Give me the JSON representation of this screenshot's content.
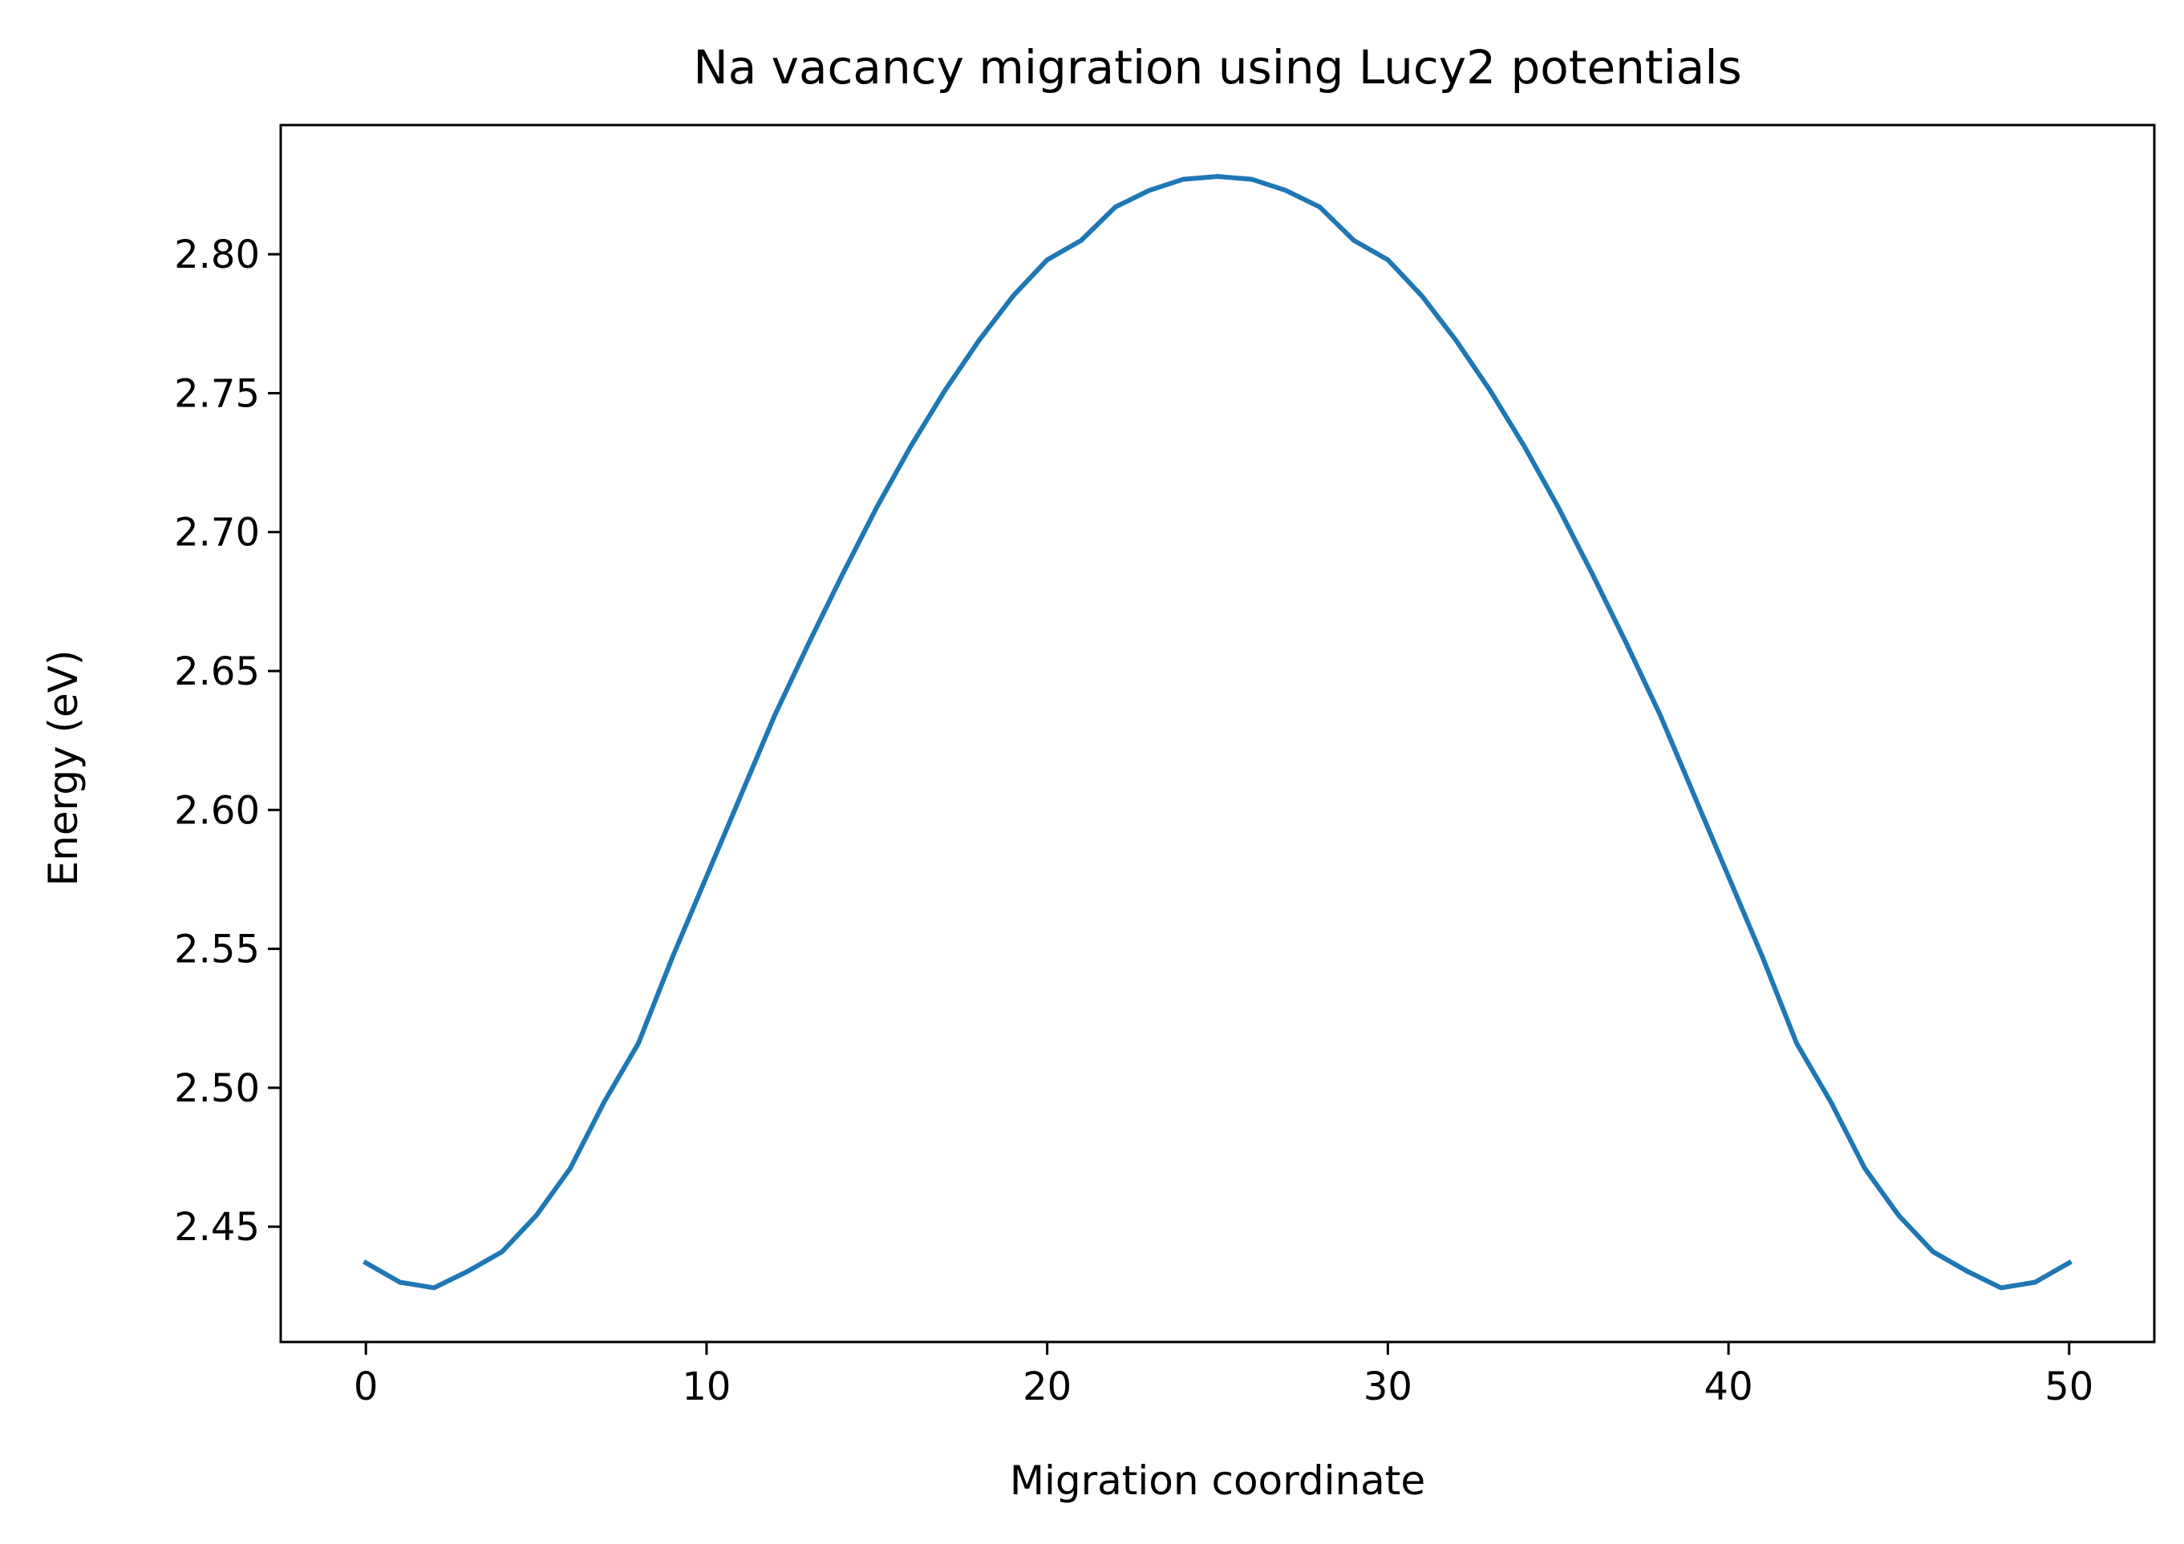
{
  "chart_data": {
    "type": "line",
    "title": "Na vacancy migration using Lucy2 potentials",
    "xlabel": "Migration coordinate",
    "ylabel": "Energy (eV)",
    "xlim": [
      -2.5,
      52.5
    ],
    "ylim": [
      2.4085,
      2.8465
    ],
    "xticks": [
      0,
      10,
      20,
      30,
      40,
      50
    ],
    "yticks": [
      2.45,
      2.5,
      2.55,
      2.6,
      2.65,
      2.7,
      2.75,
      2.8
    ],
    "ytick_labels": [
      "2.45",
      "2.50",
      "2.55",
      "2.60",
      "2.65",
      "2.70",
      "2.75",
      "2.80"
    ],
    "grid": false,
    "series": [
      {
        "color": "#1f77b4",
        "x": [
          0,
          1,
          2,
          3,
          4,
          5,
          6,
          7,
          8,
          9,
          10,
          11,
          12,
          13,
          14,
          15,
          16,
          17,
          18,
          19,
          20,
          21,
          22,
          23,
          24,
          25,
          26,
          27,
          28,
          29,
          30,
          31,
          32,
          33,
          34,
          35,
          36,
          37,
          38,
          39,
          40,
          41,
          42,
          43,
          44,
          45,
          46,
          47,
          48,
          49,
          50
        ],
        "y": [
          2.437,
          2.43,
          2.428,
          2.434,
          2.441,
          2.454,
          2.471,
          2.495,
          2.516,
          2.547,
          2.576,
          2.605,
          2.634,
          2.66,
          2.685,
          2.709,
          2.731,
          2.751,
          2.769,
          2.785,
          2.798,
          2.805,
          2.817,
          2.823,
          2.827,
          2.828,
          2.827,
          2.823,
          2.817,
          2.805,
          2.798,
          2.785,
          2.769,
          2.751,
          2.731,
          2.709,
          2.685,
          2.66,
          2.634,
          2.605,
          2.576,
          2.547,
          2.516,
          2.495,
          2.471,
          2.454,
          2.441,
          2.434,
          2.428,
          2.43,
          2.437
        ]
      }
    ]
  }
}
